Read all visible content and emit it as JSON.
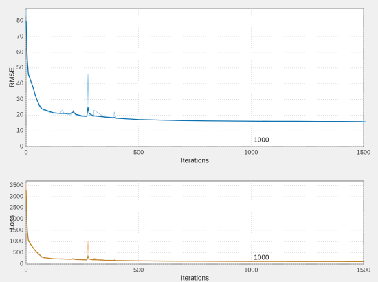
{
  "chart_data": [
    {
      "type": "line",
      "ylabel": "RMSE",
      "xlabel": "Iterations",
      "annotation": "1000",
      "x": [
        0,
        5,
        10,
        20,
        30,
        40,
        50,
        60,
        70,
        80,
        100,
        120,
        150,
        160,
        170,
        200,
        210,
        220,
        250,
        270,
        275,
        280,
        300,
        302,
        350,
        390,
        392,
        400,
        500,
        600,
        700,
        800,
        900,
        1000,
        1100,
        1200,
        1300,
        1400,
        1500
      ],
      "xlim": [
        0,
        1500
      ],
      "xticks": [
        0,
        500,
        1000,
        1500
      ],
      "ylim": [
        0,
        88
      ],
      "yticks": [
        0,
        10,
        20,
        30,
        40,
        50,
        60,
        70,
        80
      ],
      "grid": true,
      "series": [
        {
          "color": "#8cc4e6",
          "values": [
            87,
            60,
            47,
            42,
            38,
            33,
            29,
            25,
            24,
            23,
            22,
            21,
            21,
            23,
            21,
            20,
            23,
            20,
            19,
            19,
            46,
            20,
            19,
            23,
            18.5,
            18,
            22,
            18,
            17.2,
            16.8,
            16.5,
            16.3,
            16.2,
            16.1,
            16,
            16,
            15.9,
            15.9,
            15.8
          ]
        },
        {
          "color": "#0f72b0",
          "values": [
            80,
            55,
            46,
            42,
            38,
            33,
            29,
            26,
            24,
            23.5,
            22.5,
            21.5,
            21,
            21,
            21,
            21,
            22,
            20.5,
            19.5,
            19.3,
            25,
            21,
            19.5,
            19.5,
            18.8,
            18.3,
            18.5,
            18,
            17.2,
            16.8,
            16.5,
            16.3,
            16.2,
            16.1,
            16,
            16,
            15.9,
            15.9,
            15.8
          ]
        },
        {
          "color": "#4da6d9",
          "marker": true,
          "values": [
            null,
            null,
            null,
            null,
            null,
            null,
            null,
            null,
            null,
            null,
            null,
            null,
            null,
            null,
            null,
            null,
            null,
            null,
            null,
            null,
            null,
            null,
            null,
            null,
            null,
            null,
            null,
            null,
            null,
            null,
            null,
            null,
            null,
            null,
            null,
            null,
            null,
            null,
            15.8
          ]
        }
      ]
    },
    {
      "type": "line",
      "ylabel": "Loss",
      "xlabel": "Iterations",
      "annotation": "1000",
      "x": [
        0,
        5,
        10,
        20,
        30,
        40,
        50,
        60,
        70,
        80,
        100,
        120,
        150,
        160,
        170,
        200,
        210,
        220,
        250,
        270,
        275,
        280,
        300,
        302,
        350,
        390,
        392,
        400,
        500,
        600,
        700,
        800,
        900,
        1000,
        1100,
        1200,
        1300,
        1400,
        1500
      ],
      "xlim": [
        0,
        1500
      ],
      "xticks": [
        0,
        500,
        1000,
        1500
      ],
      "ylim": [
        0,
        3700
      ],
      "yticks": [
        0,
        500,
        1000,
        1500,
        2000,
        2500,
        3000,
        3500
      ],
      "grid": true,
      "series": [
        {
          "color": "#f2be8c",
          "values": [
            3600,
            1700,
            1100,
            900,
            750,
            620,
            500,
            400,
            300,
            280,
            270,
            230,
            230,
            250,
            220,
            210,
            270,
            200,
            190,
            180,
            1000,
            200,
            180,
            260,
            170,
            160,
            200,
            160,
            145,
            135,
            130,
            125,
            122,
            120,
            118,
            116,
            115,
            114,
            112
          ]
        },
        {
          "color": "#c0832a",
          "values": [
            3300,
            1500,
            1050,
            880,
            740,
            610,
            500,
            410,
            320,
            285,
            265,
            240,
            230,
            230,
            225,
            215,
            230,
            205,
            195,
            185,
            350,
            230,
            190,
            195,
            172,
            162,
            170,
            160,
            145,
            135,
            130,
            125,
            122,
            120,
            118,
            116,
            115,
            114,
            112
          ]
        }
      ]
    }
  ]
}
